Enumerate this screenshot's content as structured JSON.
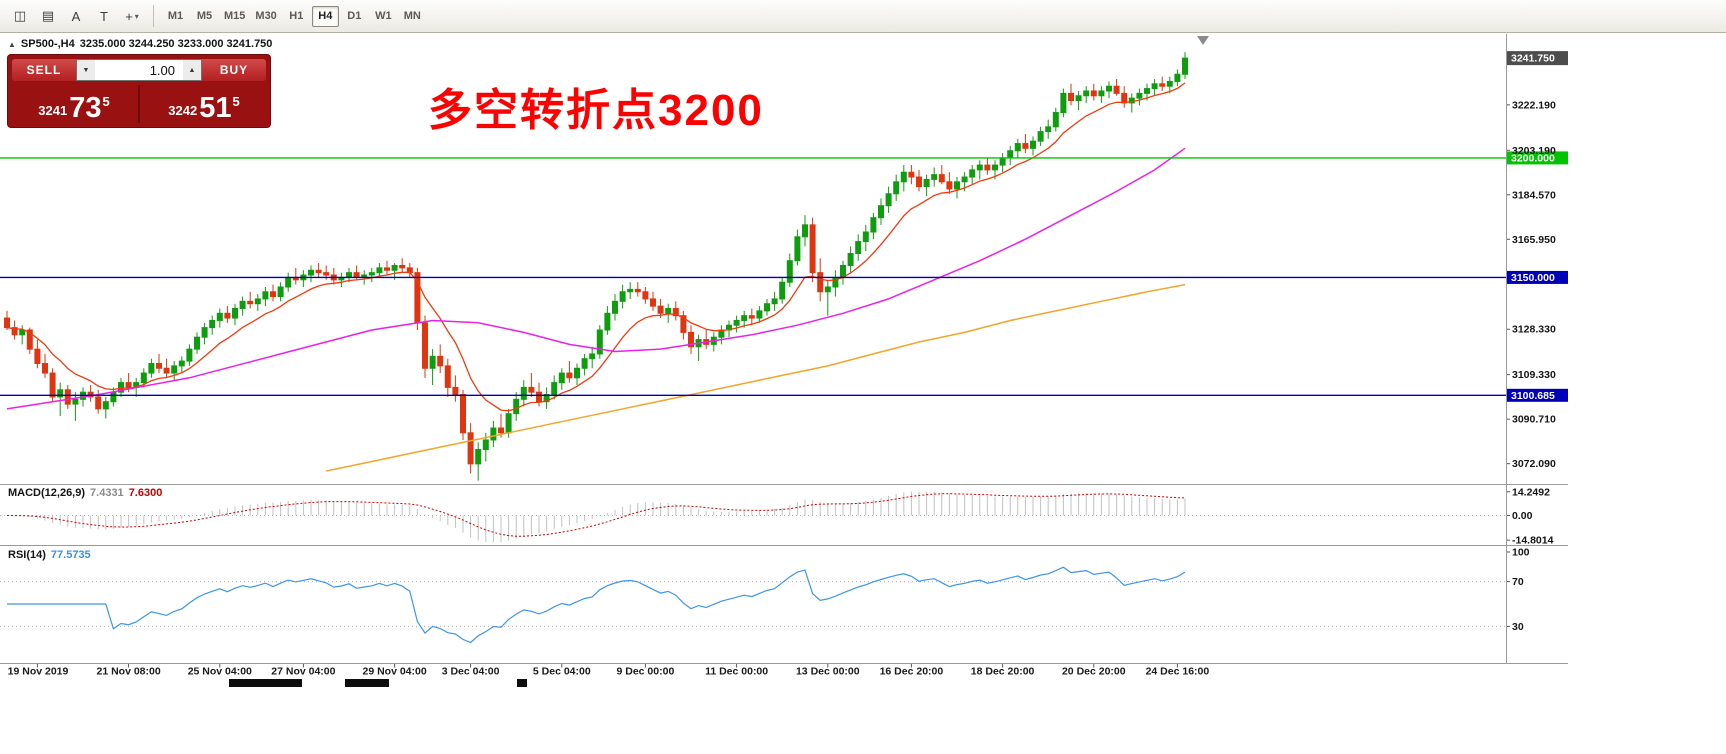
{
  "toolbar": {
    "icons": [
      {
        "name": "chart-style-icon",
        "glyph": "◫"
      },
      {
        "name": "indicators-icon",
        "glyph": "▤"
      },
      {
        "name": "text-tool-icon",
        "glyph": "A"
      },
      {
        "name": "textbox-tool-icon",
        "glyph": "T"
      },
      {
        "name": "crosshair-tool-icon",
        "glyph": "+",
        "caret": "▾"
      }
    ],
    "timeframes": [
      "M1",
      "M5",
      "M15",
      "M30",
      "H1",
      "H4",
      "D1",
      "W1",
      "MN"
    ],
    "active_timeframe": "H4"
  },
  "chart_header": {
    "collapse_icon": "▲",
    "symbol": "SP500-,H4",
    "ohlc_text": "3235.000 3244.250 3233.000 3241.750"
  },
  "trade_panel": {
    "sell_label": "SELL",
    "buy_label": "BUY",
    "volume": "1.00",
    "spin_down": "▼",
    "spin_up": "▲",
    "bid_small": "3241",
    "bid_big": "73",
    "bid_sup": "5",
    "ask_small": "3242",
    "ask_big": "51",
    "ask_sup": "5"
  },
  "annotation": {
    "text": "多空转折点3200",
    "color": "#ff0000"
  },
  "price_axis": {
    "current": "3241.750",
    "ticks": [
      "3222.190",
      "3203.190",
      "3184.570",
      "3165.950",
      "3128.330",
      "3109.330",
      "3090.710",
      "3072.090"
    ],
    "hlines": [
      {
        "label": "3200.000",
        "price": 3200.0,
        "color": "#00c400"
      },
      {
        "label": "3150.000",
        "price": 3150.0,
        "color": "#0000b8"
      },
      {
        "label": "3100.685",
        "price": 3100.685,
        "color": "#0000b8"
      }
    ]
  },
  "macd": {
    "name": "MACD(12,26,9)",
    "value_main": "7.4331",
    "value_signal": "7.6300",
    "axis": [
      "14.2492",
      "0.00",
      "-14.8014"
    ]
  },
  "rsi": {
    "name": "RSI(14)",
    "value": "77.5735",
    "axis": [
      "100",
      "70",
      "30"
    ],
    "levels": [
      70,
      30
    ]
  },
  "chart_data": {
    "type": "candlestick",
    "symbol": "SP500-",
    "timeframe": "H4",
    "ylim": [
      3064,
      3251
    ],
    "colors": {
      "up": "#0f9d0f",
      "down": "#df3510",
      "ma_fast": "#ef3b0e",
      "ma_mid": "#e822e8",
      "ma_slow": "#f2a52a",
      "macd_hist": "#c2c2c2",
      "macd_signal": "#cf0000",
      "rsi": "#3d96e8",
      "axis_text": "#151515",
      "current_box": "#4d4d4d",
      "grid": "#b3b3b3"
    },
    "candles": [
      [
        3133,
        3136,
        3128,
        3129
      ],
      [
        3129,
        3132,
        3124,
        3126
      ],
      [
        3126,
        3130,
        3122,
        3128
      ],
      [
        3128,
        3129,
        3118,
        3120
      ],
      [
        3120,
        3124,
        3112,
        3114
      ],
      [
        3114,
        3118,
        3108,
        3110
      ],
      [
        3110,
        3112,
        3098,
        3100
      ],
      [
        3100,
        3106,
        3092,
        3103
      ],
      [
        3103,
        3105,
        3095,
        3097
      ],
      [
        3097,
        3102,
        3090,
        3099
      ],
      [
        3099,
        3104,
        3096,
        3102
      ],
      [
        3102,
        3105,
        3098,
        3100
      ],
      [
        3100,
        3103,
        3093,
        3095
      ],
      [
        3095,
        3100,
        3091,
        3098
      ],
      [
        3098,
        3104,
        3096,
        3102
      ],
      [
        3102,
        3108,
        3100,
        3106
      ],
      [
        3106,
        3110,
        3102,
        3104
      ],
      [
        3104,
        3108,
        3100,
        3106
      ],
      [
        3106,
        3112,
        3104,
        3110
      ],
      [
        3110,
        3116,
        3108,
        3114
      ],
      [
        3114,
        3118,
        3110,
        3112
      ],
      [
        3112,
        3116,
        3108,
        3110
      ],
      [
        3110,
        3115,
        3107,
        3113
      ],
      [
        3113,
        3117,
        3110,
        3115
      ],
      [
        3115,
        3122,
        3113,
        3120
      ],
      [
        3120,
        3127,
        3118,
        3125
      ],
      [
        3125,
        3131,
        3122,
        3129
      ],
      [
        3129,
        3134,
        3126,
        3132
      ],
      [
        3132,
        3137,
        3129,
        3135
      ],
      [
        3135,
        3138,
        3131,
        3133
      ],
      [
        3133,
        3139,
        3130,
        3137
      ],
      [
        3137,
        3142,
        3134,
        3140
      ],
      [
        3140,
        3144,
        3137,
        3139
      ],
      [
        3139,
        3143,
        3136,
        3141
      ],
      [
        3141,
        3146,
        3138,
        3144
      ],
      [
        3144,
        3147,
        3140,
        3142
      ],
      [
        3142,
        3148,
        3140,
        3146
      ],
      [
        3146,
        3152,
        3144,
        3150
      ],
      [
        3150,
        3154,
        3147,
        3149
      ],
      [
        3149,
        3153,
        3146,
        3151
      ],
      [
        3151,
        3155,
        3148,
        3153
      ],
      [
        3153,
        3156,
        3150,
        3152
      ],
      [
        3152,
        3155,
        3149,
        3151
      ],
      [
        3151,
        3154,
        3147,
        3149
      ],
      [
        3149,
        3152,
        3146,
        3150
      ],
      [
        3150,
        3154,
        3148,
        3152
      ],
      [
        3152,
        3155,
        3149,
        3150
      ],
      [
        3150,
        3153,
        3147,
        3151
      ],
      [
        3151,
        3154,
        3148,
        3152
      ],
      [
        3152,
        3156,
        3150,
        3154
      ],
      [
        3154,
        3157,
        3151,
        3153
      ],
      [
        3153,
        3156,
        3149,
        3155
      ],
      [
        3155,
        3158,
        3152,
        3154
      ],
      [
        3154,
        3156,
        3150,
        3152
      ],
      [
        3152,
        3154,
        3128,
        3131
      ],
      [
        3131,
        3134,
        3108,
        3112
      ],
      [
        3112,
        3120,
        3105,
        3117
      ],
      [
        3117,
        3122,
        3110,
        3113
      ],
      [
        3113,
        3116,
        3100,
        3104
      ],
      [
        3104,
        3109,
        3098,
        3101
      ],
      [
        3101,
        3103,
        3082,
        3085
      ],
      [
        3085,
        3089,
        3068,
        3072
      ],
      [
        3072,
        3081,
        3065,
        3078
      ],
      [
        3078,
        3085,
        3073,
        3082
      ],
      [
        3082,
        3090,
        3079,
        3087
      ],
      [
        3087,
        3093,
        3083,
        3085
      ],
      [
        3085,
        3095,
        3083,
        3093
      ],
      [
        3093,
        3102,
        3090,
        3099
      ],
      [
        3099,
        3107,
        3096,
        3104
      ],
      [
        3104,
        3110,
        3100,
        3102
      ],
      [
        3102,
        3106,
        3096,
        3098
      ],
      [
        3098,
        3104,
        3095,
        3101
      ],
      [
        3101,
        3109,
        3099,
        3106
      ],
      [
        3106,
        3112,
        3103,
        3110
      ],
      [
        3110,
        3115,
        3106,
        3108
      ],
      [
        3108,
        3114,
        3105,
        3112
      ],
      [
        3112,
        3118,
        3109,
        3116
      ],
      [
        3116,
        3121,
        3112,
        3118
      ],
      [
        3118,
        3130,
        3116,
        3128
      ],
      [
        3128,
        3138,
        3126,
        3135
      ],
      [
        3135,
        3143,
        3132,
        3140
      ],
      [
        3140,
        3147,
        3137,
        3144
      ],
      [
        3144,
        3148,
        3141,
        3145
      ],
      [
        3145,
        3148,
        3142,
        3144
      ],
      [
        3144,
        3146,
        3139,
        3141
      ],
      [
        3141,
        3144,
        3136,
        3138
      ],
      [
        3138,
        3141,
        3133,
        3135
      ],
      [
        3135,
        3139,
        3131,
        3137
      ],
      [
        3137,
        3140,
        3132,
        3134
      ],
      [
        3134,
        3136,
        3124,
        3127
      ],
      [
        3127,
        3130,
        3118,
        3121
      ],
      [
        3121,
        3126,
        3115,
        3124
      ],
      [
        3124,
        3128,
        3120,
        3122
      ],
      [
        3122,
        3127,
        3119,
        3125
      ],
      [
        3125,
        3130,
        3122,
        3128
      ],
      [
        3128,
        3132,
        3125,
        3130
      ],
      [
        3130,
        3134,
        3127,
        3132
      ],
      [
        3132,
        3136,
        3129,
        3134
      ],
      [
        3134,
        3137,
        3130,
        3133
      ],
      [
        3133,
        3138,
        3131,
        3136
      ],
      [
        3136,
        3141,
        3134,
        3139
      ],
      [
        3139,
        3144,
        3136,
        3141
      ],
      [
        3141,
        3150,
        3139,
        3148
      ],
      [
        3148,
        3160,
        3146,
        3157
      ],
      [
        3157,
        3170,
        3155,
        3167
      ],
      [
        3167,
        3176,
        3163,
        3172
      ],
      [
        3172,
        3175,
        3148,
        3152
      ],
      [
        3152,
        3158,
        3140,
        3144
      ],
      [
        3144,
        3149,
        3134,
        3146
      ],
      [
        3146,
        3153,
        3142,
        3150
      ],
      [
        3150,
        3157,
        3147,
        3155
      ],
      [
        3155,
        3163,
        3152,
        3160
      ],
      [
        3160,
        3168,
        3157,
        3165
      ],
      [
        3165,
        3172,
        3161,
        3169
      ],
      [
        3169,
        3177,
        3166,
        3175
      ],
      [
        3175,
        3183,
        3172,
        3180
      ],
      [
        3180,
        3188,
        3177,
        3185
      ],
      [
        3185,
        3193,
        3182,
        3190
      ],
      [
        3190,
        3197,
        3186,
        3194
      ],
      [
        3194,
        3197,
        3189,
        3192
      ],
      [
        3192,
        3195,
        3186,
        3188
      ],
      [
        3188,
        3193,
        3184,
        3191
      ],
      [
        3191,
        3196,
        3188,
        3193
      ],
      [
        3193,
        3197,
        3189,
        3190
      ],
      [
        3190,
        3194,
        3185,
        3187
      ],
      [
        3187,
        3192,
        3183,
        3190
      ],
      [
        3190,
        3194,
        3186,
        3192
      ],
      [
        3192,
        3197,
        3189,
        3195
      ],
      [
        3195,
        3199,
        3191,
        3197
      ],
      [
        3197,
        3200,
        3193,
        3195
      ],
      [
        3195,
        3199,
        3191,
        3197
      ],
      [
        3197,
        3202,
        3194,
        3200
      ],
      [
        3200,
        3205,
        3197,
        3203
      ],
      [
        3203,
        3208,
        3200,
        3206
      ],
      [
        3206,
        3210,
        3202,
        3204
      ],
      [
        3204,
        3209,
        3201,
        3207
      ],
      [
        3207,
        3213,
        3205,
        3211
      ],
      [
        3211,
        3216,
        3208,
        3213
      ],
      [
        3213,
        3221,
        3211,
        3219
      ],
      [
        3219,
        3229,
        3217,
        3227
      ],
      [
        3227,
        3231,
        3222,
        3224
      ],
      [
        3224,
        3228,
        3220,
        3226
      ],
      [
        3226,
        3230,
        3223,
        3228
      ],
      [
        3228,
        3231,
        3224,
        3226
      ],
      [
        3226,
        3230,
        3223,
        3228
      ],
      [
        3228,
        3232,
        3225,
        3230
      ],
      [
        3230,
        3233,
        3226,
        3227
      ],
      [
        3227,
        3230,
        3221,
        3223
      ],
      [
        3223,
        3227,
        3219,
        3225
      ],
      [
        3225,
        3229,
        3222,
        3227
      ],
      [
        3227,
        3231,
        3224,
        3229
      ],
      [
        3229,
        3233,
        3226,
        3231
      ],
      [
        3231,
        3234,
        3228,
        3230
      ],
      [
        3230,
        3234,
        3227,
        3232
      ],
      [
        3232,
        3237,
        3230,
        3235
      ],
      [
        3235,
        3244.25,
        3233,
        3241.75
      ]
    ],
    "ma_fast_period": 10,
    "ma_mid_points": [
      [
        0,
        3095
      ],
      [
        12,
        3101
      ],
      [
        24,
        3108
      ],
      [
        36,
        3118
      ],
      [
        48,
        3128
      ],
      [
        56,
        3132
      ],
      [
        62,
        3131
      ],
      [
        68,
        3127
      ],
      [
        74,
        3122
      ],
      [
        80,
        3119
      ],
      [
        86,
        3120
      ],
      [
        92,
        3123
      ],
      [
        98,
        3126
      ],
      [
        104,
        3130
      ],
      [
        110,
        3135
      ],
      [
        116,
        3141
      ],
      [
        122,
        3149
      ],
      [
        128,
        3157
      ],
      [
        134,
        3166
      ],
      [
        140,
        3176
      ],
      [
        146,
        3186
      ],
      [
        151,
        3195
      ],
      [
        155,
        3204
      ]
    ],
    "ma_slow_points": [
      [
        42,
        3069
      ],
      [
        48,
        3073
      ],
      [
        54,
        3077
      ],
      [
        60,
        3081
      ],
      [
        66,
        3085
      ],
      [
        72,
        3089
      ],
      [
        78,
        3093
      ],
      [
        84,
        3097
      ],
      [
        90,
        3101
      ],
      [
        96,
        3105
      ],
      [
        102,
        3109
      ],
      [
        108,
        3113
      ],
      [
        114,
        3118
      ],
      [
        120,
        3123
      ],
      [
        126,
        3127
      ],
      [
        132,
        3132
      ],
      [
        138,
        3136
      ],
      [
        144,
        3140
      ],
      [
        150,
        3144
      ],
      [
        155,
        3147
      ]
    ],
    "time_ticks": [
      {
        "label": "19 Nov 2019",
        "i": 4
      },
      {
        "label": "21 Nov 08:00",
        "i": 16
      },
      {
        "label": "25 Nov 04:00",
        "i": 28
      },
      {
        "label": "27 Nov 04:00",
        "i": 39
      },
      {
        "label": "29 Nov 04:00",
        "i": 51
      },
      {
        "label": "3 Dec 04:00",
        "i": 61
      },
      {
        "label": "5 Dec 04:00",
        "i": 73
      },
      {
        "label": "9 Dec 00:00",
        "i": 84
      },
      {
        "label": "11 Dec 00:00",
        "i": 96
      },
      {
        "label": "13 Dec 00:00",
        "i": 108
      },
      {
        "label": "16 Dec 20:00",
        "i": 119
      },
      {
        "label": "18 Dec 20:00",
        "i": 131
      },
      {
        "label": "20 Dec 20:00",
        "i": 143
      },
      {
        "label": "24 Dec 16:00",
        "i": 154
      }
    ]
  }
}
